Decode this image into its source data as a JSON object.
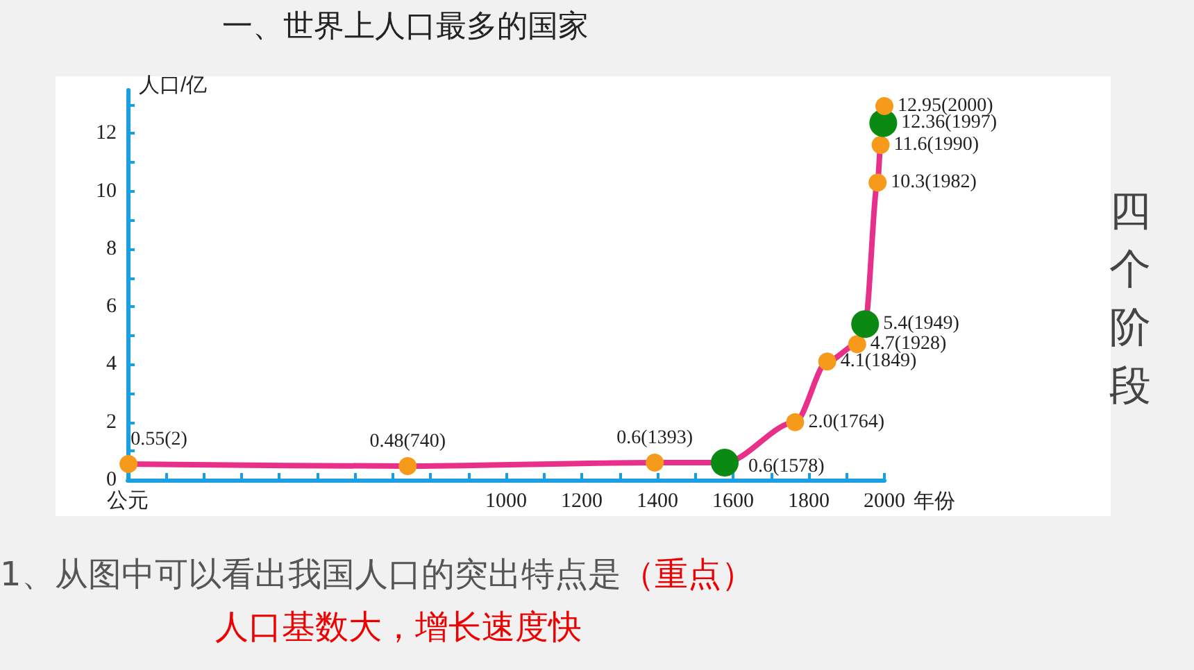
{
  "chart_data": {
    "type": "line",
    "title": "一、世界上人口最多的国家",
    "xlabel": "年份",
    "ylabel": "人口/亿",
    "x": [
      2,
      740,
      1393,
      1578,
      1764,
      1849,
      1928,
      1949,
      1982,
      1990,
      1997,
      2000
    ],
    "series": [
      {
        "color": "#e8308a",
        "values": [
          0.55,
          0.48,
          0.6,
          0.6,
          2.0,
          4.1,
          4.7,
          5.4,
          10.3,
          11.6,
          12.36,
          12.95
        ],
        "colors": [
          "#f59a1a",
          "#f59a1a",
          "#f59a1a",
          "#0a8a12",
          "#f59a1a",
          "#f59a1a",
          "#f59a1a",
          "#0a8a12",
          "#f59a1a",
          "#f59a1a",
          "#0a8a12",
          "#f59a1a"
        ],
        "value_labels": [
          "0.55(2)",
          "0.48(740)",
          "0.6(1393)",
          "0.6(1578)",
          "2.0(1764)",
          "4.1(1849)",
          "4.7(1928)",
          "5.4(1949)",
          "10.3(1982)",
          "11.6(1990)",
          "12.36(1997)",
          "12.95(2000)"
        ]
      }
    ],
    "xlim": [
      0,
      2000
    ],
    "xticks": [
      {
        "value": 0,
        "label": "公元"
      },
      {
        "value": 100,
        "label": null
      },
      {
        "value": 200,
        "label": null
      },
      {
        "value": 300,
        "label": null
      },
      {
        "value": 400,
        "label": null
      },
      {
        "value": 500,
        "label": null
      },
      {
        "value": 600,
        "label": null
      },
      {
        "value": 700,
        "label": null
      },
      {
        "value": 800,
        "label": null
      },
      {
        "value": 900,
        "label": null
      },
      1000,
      {
        "value": 1100,
        "label": null
      },
      1200,
      {
        "value": 1300,
        "label": null
      },
      1400,
      {
        "value": 1500,
        "label": null
      },
      1600,
      {
        "value": 1700,
        "label": null
      },
      1800,
      {
        "value": 1900,
        "label": null
      },
      2000
    ],
    "ylim": [
      0,
      13.5
    ],
    "yticks": [
      0,
      {
        "value": 1,
        "label": null
      },
      2,
      {
        "value": 3,
        "label": null
      },
      4,
      {
        "value": 5,
        "label": null
      },
      6,
      {
        "value": 7,
        "label": null
      },
      8,
      {
        "value": 9,
        "label": null
      },
      10,
      {
        "value": 11,
        "label": null
      },
      12,
      {
        "value": 13,
        "label": null
      }
    ],
    "grid": false,
    "marker": "circle",
    "line_style": "solid",
    "annotations": [
      "四个阶段",
      "1、从图中可以看出我国人口的突出特点是",
      "（重点）",
      "人口基数大，增长速度快"
    ]
  }
}
